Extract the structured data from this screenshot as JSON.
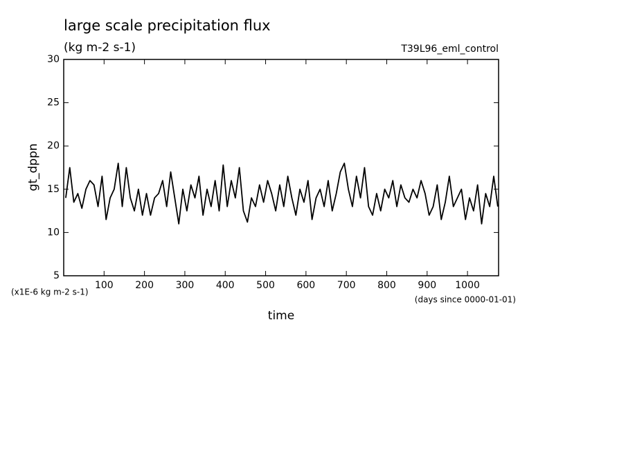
{
  "chart_data": {
    "type": "line",
    "title": "large scale precipitation flux",
    "subtitle": "(kg m-2 s-1)",
    "run_label": "T39L96_eml_control",
    "y_label": "gt_dppn",
    "y_unit_note": "(x1E-6 kg m-2 s-1)",
    "x_label": "time",
    "x_unit_note": "(days since 0000-01-01)",
    "xlim": [
      0,
      1077
    ],
    "ylim": [
      5,
      30
    ],
    "xticks": [
      100,
      200,
      300,
      400,
      500,
      600,
      700,
      800,
      900,
      1000
    ],
    "yticks": [
      5,
      10,
      15,
      20,
      25,
      30
    ],
    "series": [
      {
        "color": "#000000",
        "x": [
          5,
          15,
          25,
          35,
          45,
          55,
          65,
          75,
          85,
          95,
          105,
          115,
          125,
          135,
          145,
          155,
          165,
          175,
          185,
          195,
          205,
          215,
          225,
          235,
          245,
          255,
          265,
          275,
          285,
          295,
          305,
          315,
          325,
          335,
          345,
          355,
          365,
          375,
          385,
          395,
          405,
          415,
          425,
          435,
          445,
          455,
          465,
          475,
          485,
          495,
          505,
          515,
          525,
          535,
          545,
          555,
          565,
          575,
          585,
          595,
          605,
          615,
          625,
          635,
          645,
          655,
          665,
          675,
          685,
          695,
          705,
          715,
          725,
          735,
          745,
          755,
          765,
          775,
          785,
          795,
          805,
          815,
          825,
          835,
          845,
          855,
          865,
          875,
          885,
          895,
          905,
          915,
          925,
          935,
          945,
          955,
          965,
          975,
          985,
          995,
          1005,
          1015,
          1025,
          1035,
          1045,
          1055,
          1065,
          1075
        ],
        "values": [
          14,
          17.5,
          13.5,
          14.5,
          12.8,
          15,
          16,
          15.5,
          13,
          16.5,
          11.5,
          14,
          15,
          18,
          13,
          17.5,
          14,
          12.5,
          15,
          12,
          14.5,
          12,
          14,
          14.5,
          16,
          13,
          17,
          14,
          11,
          15,
          12.5,
          15.5,
          14,
          16.5,
          12,
          15,
          13,
          16,
          12.5,
          17.8,
          13,
          16,
          14,
          17.5,
          12.5,
          11.2,
          14,
          13,
          15.5,
          13.5,
          16,
          14.5,
          12.5,
          15.5,
          13,
          16.5,
          14,
          12,
          15,
          13.5,
          16,
          11.5,
          14,
          15,
          13,
          16,
          12.5,
          14.5,
          17,
          18,
          15,
          13,
          16.5,
          14,
          17.5,
          13,
          12,
          14.5,
          12.5,
          15,
          14,
          16,
          13,
          15.5,
          14,
          13.5,
          15,
          14,
          16,
          14.5,
          12,
          13,
          15.5,
          11.5,
          13.5,
          16.5,
          13,
          14,
          15,
          11.5,
          14,
          12.5,
          15.5,
          11,
          14.5,
          13,
          16.5,
          13
        ]
      }
    ]
  }
}
